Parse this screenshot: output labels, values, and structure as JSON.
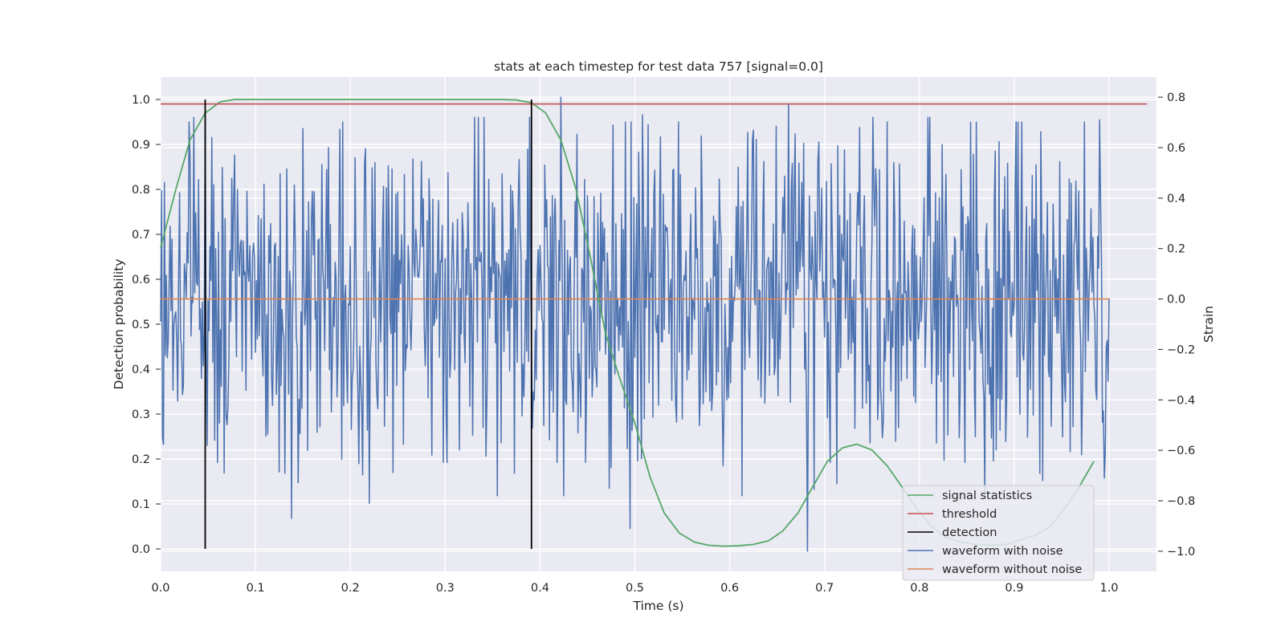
{
  "chart_data": {
    "type": "line",
    "title": "stats at each timestep for test data 757 [signal=0.0]",
    "xlabel": "Time (s)",
    "ylabel": "Detection probability",
    "ylabel_right": "Strain",
    "xlim": [
      0.0,
      1.05
    ],
    "ylim": [
      -0.05,
      1.05
    ],
    "ylim_right": [
      -1.08,
      0.88
    ],
    "x_ticks": [
      "0.0",
      "0.1",
      "0.2",
      "0.3",
      "0.4",
      "0.5",
      "0.6",
      "0.7",
      "0.8",
      "0.9",
      "1.0"
    ],
    "y_ticks": [
      "0.0",
      "0.1",
      "0.2",
      "0.3",
      "0.4",
      "0.5",
      "0.6",
      "0.7",
      "0.8",
      "0.9",
      "1.0"
    ],
    "y_right_ticks": [
      "−1.0",
      "−0.8",
      "−0.6",
      "−0.4",
      "−0.2",
      "0.0",
      "0.2",
      "0.4",
      "0.6",
      "0.8"
    ],
    "grid": true,
    "legend_position": "bottom-right",
    "colors": {
      "signal_statistics": "#55a868",
      "threshold": "#c44e52",
      "detection": "#000000",
      "waveform_with_noise": "#4c72b0",
      "waveform_without_noise": "#dd8452",
      "plot_background": "#eaeaf2",
      "grid": "#ffffff"
    },
    "legend": [
      {
        "key": "signal_statistics",
        "label": "signal statistics"
      },
      {
        "key": "threshold",
        "label": "threshold"
      },
      {
        "key": "detection",
        "label": "detection"
      },
      {
        "key": "waveform_with_noise",
        "label": "waveform with noise"
      },
      {
        "key": "waveform_without_noise",
        "label": "waveform without noise"
      }
    ],
    "threshold_value": 0.99,
    "detections": [
      0.047,
      0.391
    ],
    "waveform_without_noise": {
      "x": [
        0.0,
        1.0
      ],
      "strain": [
        0.0,
        0.0
      ]
    },
    "waveform_with_noise": {
      "x_range": [
        0.0,
        1.0
      ],
      "count": 1001,
      "visible_peaks": [
        {
          "x": 0.001,
          "strain": 0.43
        },
        {
          "x": 0.002,
          "strain": -0.55
        },
        {
          "x": 0.138,
          "strain": -0.87
        },
        {
          "x": 0.22,
          "strain": -0.81
        },
        {
          "x": 0.422,
          "strain": 0.8
        },
        {
          "x": 0.495,
          "strain": -0.91
        },
        {
          "x": 0.508,
          "strain": 0.73
        },
        {
          "x": 0.662,
          "strain": 0.77
        },
        {
          "x": 0.682,
          "strain": -1.0
        },
        {
          "x": 0.737,
          "strain": 0.68
        },
        {
          "x": 0.93,
          "strain": -0.72
        },
        {
          "x": 0.99,
          "strain": 0.71
        }
      ]
    },
    "signal_statistics": {
      "x": [
        0.0,
        0.016,
        0.031,
        0.047,
        0.063,
        0.078,
        0.094,
        0.109,
        0.125,
        0.141,
        0.156,
        0.172,
        0.188,
        0.203,
        0.219,
        0.234,
        0.25,
        0.266,
        0.281,
        0.297,
        0.313,
        0.328,
        0.344,
        0.359,
        0.375,
        0.391,
        0.406,
        0.422,
        0.438,
        0.453,
        0.469,
        0.484,
        0.5,
        0.516,
        0.531,
        0.547,
        0.563,
        0.578,
        0.594,
        0.609,
        0.625,
        0.641,
        0.656,
        0.672,
        0.688,
        0.703,
        0.719,
        0.734,
        0.75,
        0.766,
        0.781,
        0.797,
        0.813,
        0.828,
        0.844,
        0.859,
        0.875,
        0.891,
        0.906,
        0.922,
        0.938,
        0.953,
        0.969,
        0.984
      ],
      "y": [
        0.67,
        0.8,
        0.91,
        0.97,
        0.995,
        1.0,
        1.0,
        1.0,
        1.0,
        1.0,
        1.0,
        1.0,
        1.0,
        1.0,
        1.0,
        1.0,
        1.0,
        1.0,
        1.0,
        1.0,
        1.0,
        1.0,
        1.0,
        1.0,
        0.999,
        0.993,
        0.97,
        0.91,
        0.8,
        0.65,
        0.48,
        0.38,
        0.28,
        0.16,
        0.08,
        0.035,
        0.015,
        0.008,
        0.006,
        0.007,
        0.01,
        0.018,
        0.04,
        0.08,
        0.14,
        0.195,
        0.225,
        0.233,
        0.22,
        0.185,
        0.14,
        0.09,
        0.05,
        0.025,
        0.015,
        0.01,
        0.008,
        0.01,
        0.02,
        0.03,
        0.05,
        0.09,
        0.14,
        0.195
      ]
    }
  }
}
